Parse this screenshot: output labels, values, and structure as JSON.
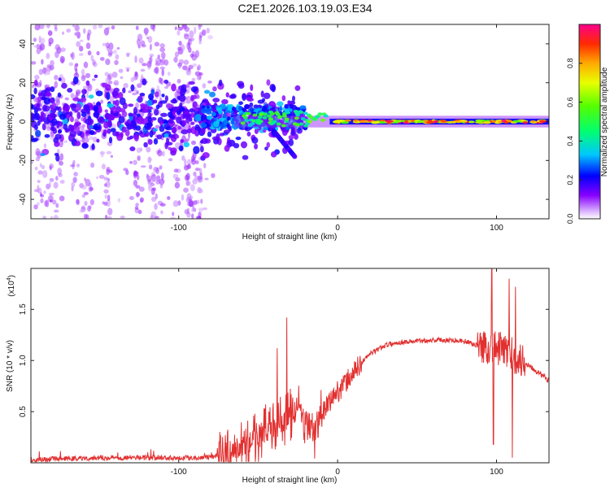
{
  "title": "C2E1.2026.103.19.03.E34",
  "chart_data": [
    {
      "type": "heatmap",
      "title": "C2E1.2026.103.19.03.E34",
      "xlabel": "Height of straight line (km)",
      "ylabel": "Frequency (Hz)",
      "xlim": [
        -193,
        133
      ],
      "ylim": [
        -50,
        50
      ],
      "xticks": [
        -100,
        0,
        100
      ],
      "yticks": [
        -40,
        -20,
        0,
        20,
        40
      ],
      "colorbar": {
        "label": "Normalized spectral amplitude",
        "ticks": [
          "0.0",
          "0.2",
          "0.4",
          "0.6",
          "0.8"
        ],
        "range": [
          0,
          1
        ]
      },
      "features": {
        "steady_tone_km": [
          -5,
          133
        ],
        "tone_frequency_hz": 0,
        "descending_branch": {
          "start": [
            -45,
            0
          ],
          "end": [
            -27,
            -18
          ]
        },
        "broadband_noise_km": [
          -193,
          -80
        ]
      }
    },
    {
      "type": "line",
      "xlabel": "Height of straight line (km)",
      "ylabel": "SNR (10 * v/v)",
      "yscale_label": "(x10",
      "yscale_exp": "4",
      "xlim": [
        -193,
        133
      ],
      "ylim": [
        0,
        1.9
      ],
      "xticks": [
        -100,
        0,
        100
      ],
      "yticks": [
        0.5,
        1.0,
        1.5
      ],
      "ytick_labels": [
        "0.5",
        "1.0",
        "1.5"
      ],
      "color": "#e23030",
      "series": [
        {
          "name": "SNR",
          "x": [
            -193,
            -170,
            -150,
            -130,
            -110,
            -90,
            -80,
            -70,
            -60,
            -50,
            -40,
            -30,
            -25,
            -20,
            -15,
            -10,
            -5,
            0,
            5,
            10,
            15,
            20,
            30,
            40,
            50,
            60,
            70,
            80,
            85,
            90,
            95,
            100,
            105,
            110,
            115,
            120,
            125,
            133
          ],
          "values": [
            0.03,
            0.04,
            0.05,
            0.05,
            0.05,
            0.05,
            0.06,
            0.09,
            0.15,
            0.25,
            0.35,
            0.45,
            0.52,
            0.42,
            0.3,
            0.45,
            0.6,
            0.7,
            0.78,
            0.88,
            0.98,
            1.06,
            1.15,
            1.18,
            1.19,
            1.2,
            1.2,
            1.19,
            1.16,
            1.14,
            1.13,
            1.12,
            1.1,
            1.05,
            1.0,
            0.96,
            0.9,
            0.8
          ],
          "spikes": [
            {
              "x": -32,
              "value": 1.42
            },
            {
              "x": -38,
              "value": 1.12
            },
            {
              "x": 97,
              "value": 1.9
            },
            {
              "x": 108,
              "value": 1.8
            },
            {
              "x": 112,
              "value": 1.72
            },
            {
              "x": 98,
              "value": 0.18
            },
            {
              "x": 110,
              "value": 0.05
            }
          ]
        }
      ]
    }
  ]
}
